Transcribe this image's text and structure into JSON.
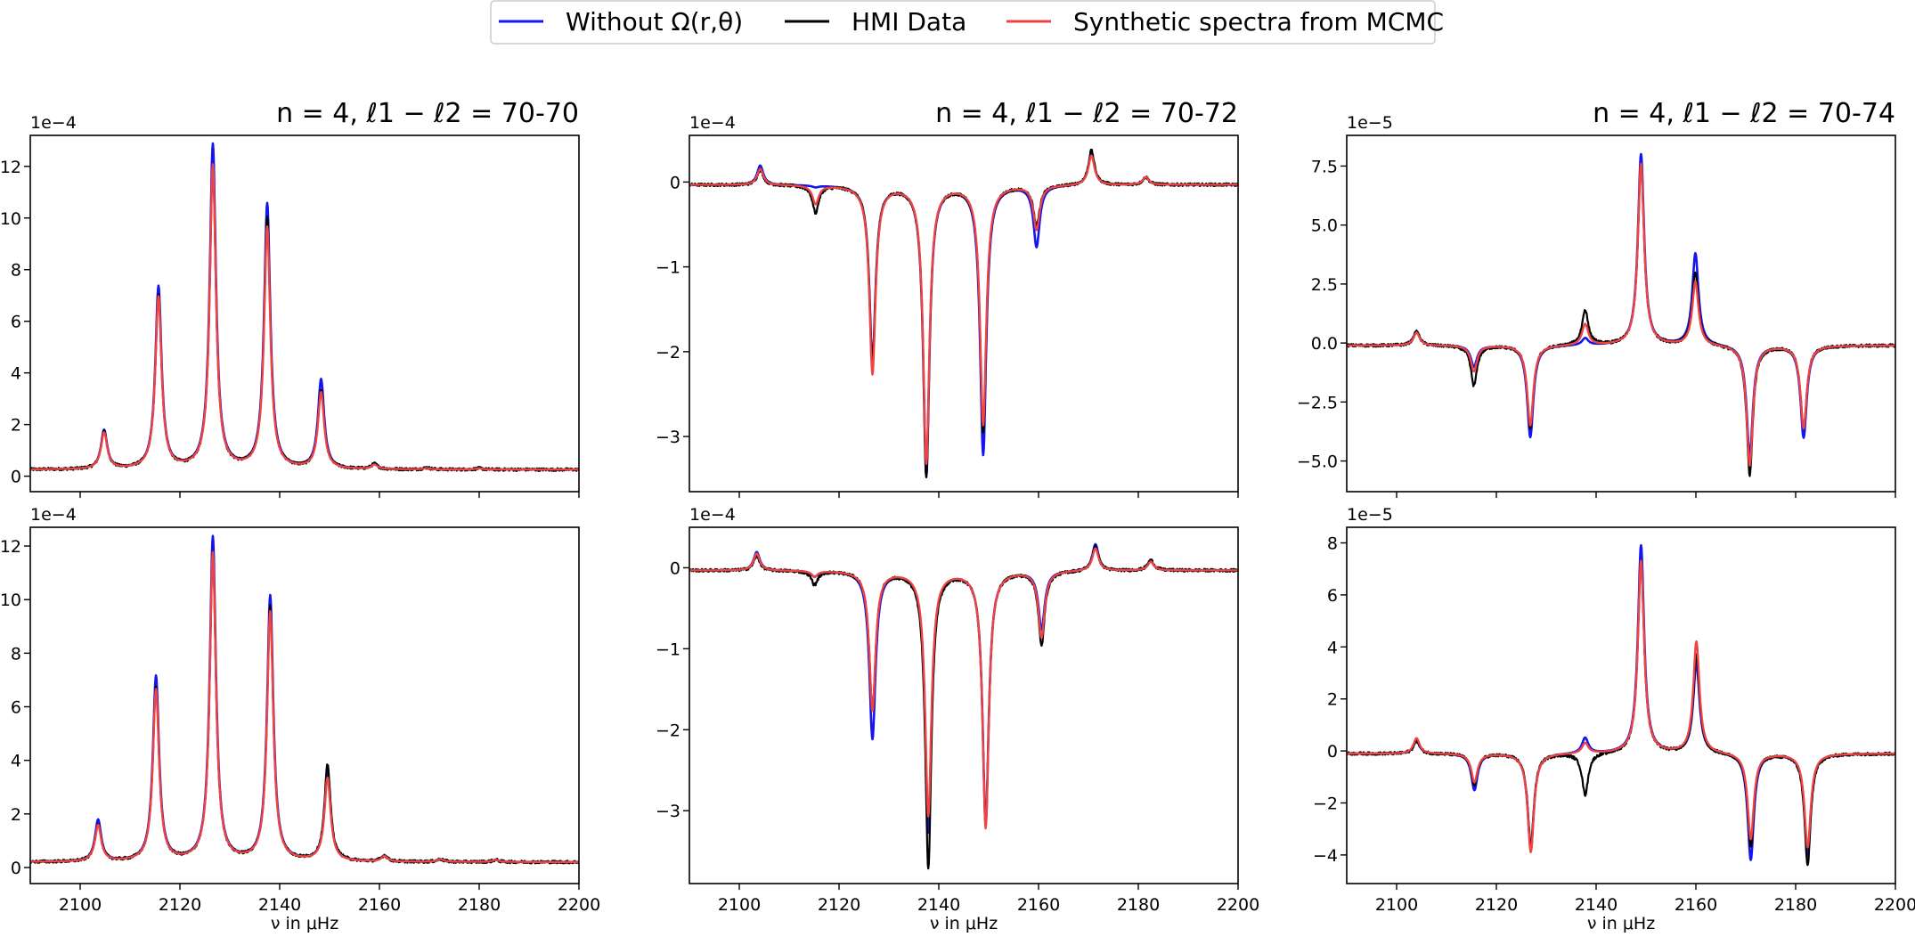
{
  "legend": [
    {
      "label": "Without Ω(r,θ)",
      "color": "#1515ee"
    },
    {
      "label": "HMI Data",
      "color": "#000000"
    },
    {
      "label": "Synthetic spectra from MCMC",
      "color": "#ef4444"
    }
  ],
  "chart_data": [
    {
      "type": "line",
      "row": 0,
      "col": 0,
      "title": "n = 4, ℓ1 − ℓ2 =  70-70",
      "xlabel": "",
      "offset_label": "1e−4",
      "xlim": [
        2090,
        2200
      ],
      "ylim": [
        -0.6,
        13.2
      ],
      "xticks": [
        2100,
        2120,
        2140,
        2160,
        2180,
        2200
      ],
      "yticks": [
        0,
        2,
        4,
        6,
        8,
        10,
        12
      ],
      "baseline": 0.25,
      "peaks": [
        {
          "x": 2104.8,
          "blue": 1.75,
          "black": 1.7,
          "red": 1.65
        },
        {
          "x": 2115.7,
          "blue": 7.3,
          "black": 7.0,
          "red": 6.9
        },
        {
          "x": 2126.6,
          "blue": 12.8,
          "black": 12.0,
          "red": 12.0
        },
        {
          "x": 2137.5,
          "blue": 10.5,
          "black": 10.0,
          "red": 9.6
        },
        {
          "x": 2148.3,
          "blue": 3.7,
          "black": 3.3,
          "red": 3.2
        },
        {
          "x": 2159.0,
          "blue": 0.45,
          "black": 0.45,
          "red": 0.42
        },
        {
          "x": 2169.5,
          "blue": 0.32,
          "black": 0.32,
          "red": 0.3
        },
        {
          "x": 2180.0,
          "blue": 0.3,
          "black": 0.3,
          "red": 0.3
        }
      ]
    },
    {
      "type": "line",
      "row": 0,
      "col": 1,
      "title": "n = 4, ℓ1 − ℓ2 =  70-72",
      "xlabel": "",
      "offset_label": "1e−4",
      "xlim": [
        2090,
        2200
      ],
      "ylim": [
        -3.65,
        0.55
      ],
      "xticks": [
        2100,
        2120,
        2140,
        2160,
        2180,
        2200
      ],
      "yticks": [
        -3,
        -2,
        -1,
        0
      ],
      "baseline": -0.03,
      "peaks": [
        {
          "x": 2104.2,
          "blue": 0.2,
          "black": 0.15,
          "red": 0.16
        },
        {
          "x": 2115.3,
          "blue": -0.05,
          "black": -0.35,
          "red": -0.25
        },
        {
          "x": 2126.7,
          "blue": -2.1,
          "black": -2.1,
          "red": -2.25
        },
        {
          "x": 2137.5,
          "blue": -3.45,
          "black": -3.45,
          "red": -3.3
        },
        {
          "x": 2148.9,
          "blue": -3.2,
          "black": -2.95,
          "red": -2.85
        },
        {
          "x": 2159.6,
          "blue": -0.75,
          "black": -0.5,
          "red": -0.55
        },
        {
          "x": 2170.6,
          "blue": 0.35,
          "black": 0.38,
          "red": 0.32
        },
        {
          "x": 2181.5,
          "blue": 0.06,
          "black": 0.06,
          "red": 0.06
        }
      ]
    },
    {
      "type": "line",
      "row": 0,
      "col": 2,
      "title": "n = 4, ℓ1 − ℓ2 =  70-74",
      "xlabel": "",
      "offset_label": "1e−5",
      "xlim": [
        2090,
        2200
      ],
      "ylim": [
        -6.3,
        8.8
      ],
      "xticks": [
        2100,
        2120,
        2140,
        2160,
        2180,
        2200
      ],
      "yticks": [
        -5.0,
        -2.5,
        0.0,
        2.5,
        5.0,
        7.5
      ],
      "baseline": -0.1,
      "peaks": [
        {
          "x": 2104.0,
          "blue": 0.5,
          "black": 0.5,
          "red": 0.45
        },
        {
          "x": 2115.5,
          "blue": -1.0,
          "black": -1.8,
          "red": -1.2
        },
        {
          "x": 2126.8,
          "blue": -4.0,
          "black": -3.6,
          "red": -3.5
        },
        {
          "x": 2137.8,
          "blue": 0.2,
          "black": 1.4,
          "red": 0.8
        },
        {
          "x": 2149.0,
          "blue": 8.0,
          "black": 7.6,
          "red": 7.6
        },
        {
          "x": 2159.9,
          "blue": 3.8,
          "black": 3.0,
          "red": 2.6
        },
        {
          "x": 2170.8,
          "blue": -4.8,
          "black": -5.6,
          "red": -5.2
        },
        {
          "x": 2181.6,
          "blue": -4.0,
          "black": -3.6,
          "red": -3.6
        }
      ]
    },
    {
      "type": "line",
      "row": 1,
      "col": 0,
      "title": "",
      "xlabel": "ν in μHz",
      "offset_label": "1e−4",
      "xlim": [
        2090,
        2200
      ],
      "ylim": [
        -0.6,
        12.7
      ],
      "xticks": [
        2100,
        2120,
        2140,
        2160,
        2180,
        2200
      ],
      "yticks": [
        0,
        2,
        4,
        6,
        8,
        10,
        12
      ],
      "baseline": 0.2,
      "peaks": [
        {
          "x": 2103.6,
          "blue": 1.75,
          "black": 1.6,
          "red": 1.55
        },
        {
          "x": 2115.2,
          "blue": 7.1,
          "black": 6.7,
          "red": 6.6
        },
        {
          "x": 2126.6,
          "blue": 12.3,
          "black": 11.7,
          "red": 11.7
        },
        {
          "x": 2138.1,
          "blue": 10.1,
          "black": 9.7,
          "red": 9.5
        },
        {
          "x": 2149.6,
          "blue": 3.5,
          "black": 3.8,
          "red": 3.3
        },
        {
          "x": 2161.0,
          "blue": 0.42,
          "black": 0.42,
          "red": 0.4
        },
        {
          "x": 2172.2,
          "blue": 0.3,
          "black": 0.3,
          "red": 0.3
        },
        {
          "x": 2183.3,
          "blue": 0.28,
          "black": 0.28,
          "red": 0.28
        }
      ]
    },
    {
      "type": "line",
      "row": 1,
      "col": 1,
      "title": "",
      "xlabel": "ν in μHz",
      "offset_label": "1e−4",
      "xlim": [
        2090,
        2200
      ],
      "ylim": [
        -3.9,
        0.5
      ],
      "xticks": [
        2100,
        2120,
        2140,
        2160,
        2180,
        2200
      ],
      "yticks": [
        -3,
        -2,
        -1,
        0
      ],
      "baseline": -0.03,
      "peaks": [
        {
          "x": 2103.5,
          "blue": 0.2,
          "black": 0.15,
          "red": 0.18
        },
        {
          "x": 2115.1,
          "blue": -0.1,
          "black": -0.2,
          "red": -0.1
        },
        {
          "x": 2126.7,
          "blue": -2.1,
          "black": -1.75,
          "red": -1.75
        },
        {
          "x": 2137.9,
          "blue": -3.25,
          "black": -3.7,
          "red": -3.05
        },
        {
          "x": 2149.4,
          "blue": -3.15,
          "black": -3.15,
          "red": -3.2
        },
        {
          "x": 2160.6,
          "blue": -0.75,
          "black": -0.95,
          "red": -0.85
        },
        {
          "x": 2171.4,
          "blue": 0.3,
          "black": 0.28,
          "red": 0.25
        },
        {
          "x": 2182.5,
          "blue": 0.08,
          "black": 0.1,
          "red": 0.08
        }
      ]
    },
    {
      "type": "line",
      "row": 1,
      "col": 2,
      "title": "",
      "xlabel": "ν in μHz",
      "offset_label": "1e−5",
      "xlim": [
        2090,
        2200
      ],
      "ylim": [
        -5.1,
        8.6
      ],
      "xticks": [
        2100,
        2120,
        2140,
        2160,
        2180,
        2200
      ],
      "yticks": [
        -4,
        -2,
        0,
        2,
        4,
        6,
        8
      ],
      "baseline": -0.1,
      "peaks": [
        {
          "x": 2104.0,
          "blue": 0.4,
          "black": 0.4,
          "red": 0.5
        },
        {
          "x": 2115.6,
          "blue": -1.5,
          "black": -1.3,
          "red": -1.2
        },
        {
          "x": 2126.9,
          "blue": -3.8,
          "black": -3.6,
          "red": -3.9
        },
        {
          "x": 2137.8,
          "blue": 0.5,
          "black": -1.7,
          "red": 0.3
        },
        {
          "x": 2149.0,
          "blue": 7.9,
          "black": 7.3,
          "red": 7.3
        },
        {
          "x": 2160.1,
          "blue": 3.4,
          "black": 3.7,
          "red": 4.2
        },
        {
          "x": 2171.0,
          "blue": -4.2,
          "black": -3.7,
          "red": -3.4
        },
        {
          "x": 2182.4,
          "blue": -4.0,
          "black": -4.4,
          "red": -3.7
        }
      ]
    }
  ]
}
